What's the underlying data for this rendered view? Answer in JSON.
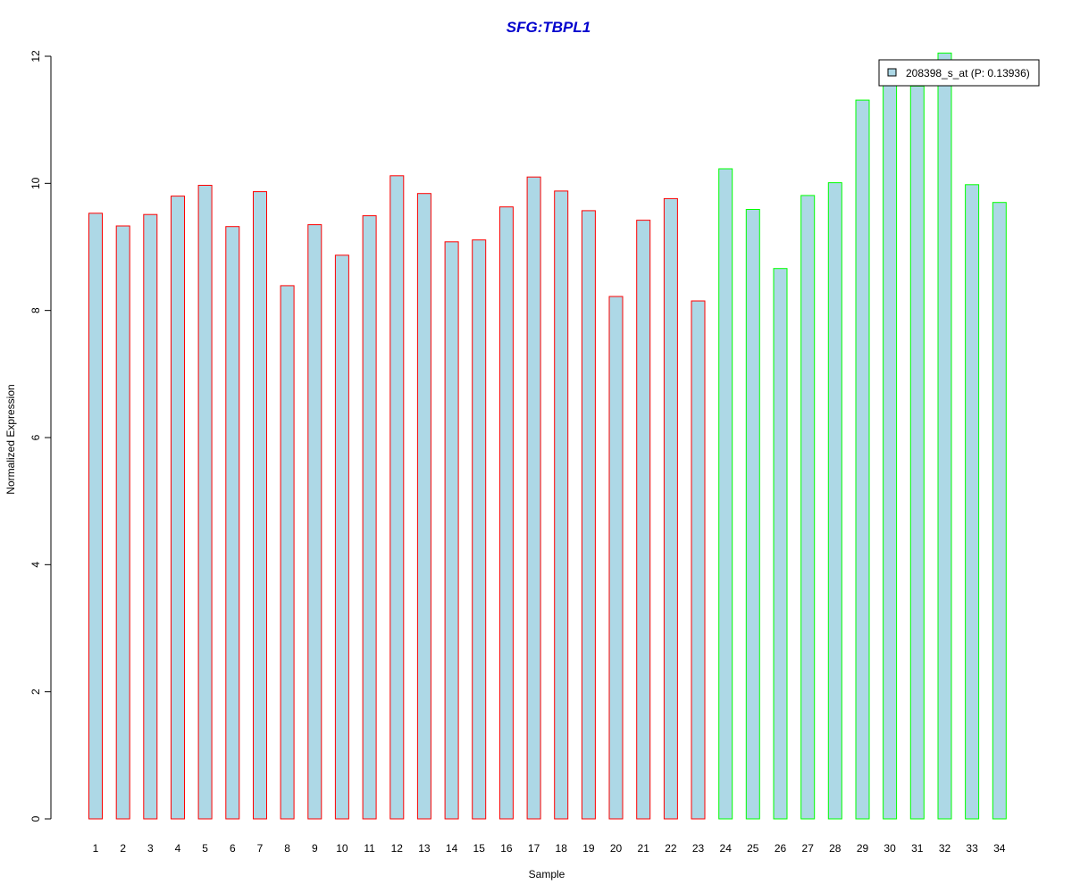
{
  "chart_data": {
    "type": "bar",
    "title": "SFG:TBPL1",
    "xlabel": "Sample",
    "ylabel": "Normalized Expression",
    "ylim": [
      0,
      12
    ],
    "yticks": [
      "0",
      "2",
      "4",
      "6",
      "8",
      "10",
      "12"
    ],
    "grid": false,
    "legend_position": "top-right",
    "categories": [
      "1",
      "2",
      "3",
      "4",
      "5",
      "6",
      "7",
      "8",
      "9",
      "10",
      "11",
      "12",
      "13",
      "14",
      "15",
      "16",
      "17",
      "18",
      "19",
      "20",
      "21",
      "22",
      "23",
      "24",
      "25",
      "26",
      "27",
      "28",
      "29",
      "30",
      "31",
      "32",
      "33",
      "34"
    ],
    "series": [
      {
        "name": "208398_s_at (P: 0.13936)",
        "values": [
          9.53,
          9.33,
          9.51,
          9.8,
          9.97,
          9.32,
          9.87,
          8.39,
          9.35,
          8.87,
          9.49,
          10.12,
          9.84,
          9.08,
          9.11,
          9.63,
          10.1,
          9.88,
          9.57,
          8.22,
          9.42,
          9.76,
          8.15,
          10.23,
          9.59,
          8.66,
          9.81,
          10.01,
          11.31,
          11.7,
          11.53,
          12.05,
          9.98,
          9.7
        ]
      }
    ],
    "groups": [
      {
        "range": [
          1,
          23
        ],
        "border_color": "#ff0000"
      },
      {
        "range": [
          24,
          34
        ],
        "border_color": "#00ff00"
      }
    ],
    "colors": {
      "bar_fill": "#add8e6",
      "title": "#0000cd",
      "axis": "#000000"
    }
  }
}
